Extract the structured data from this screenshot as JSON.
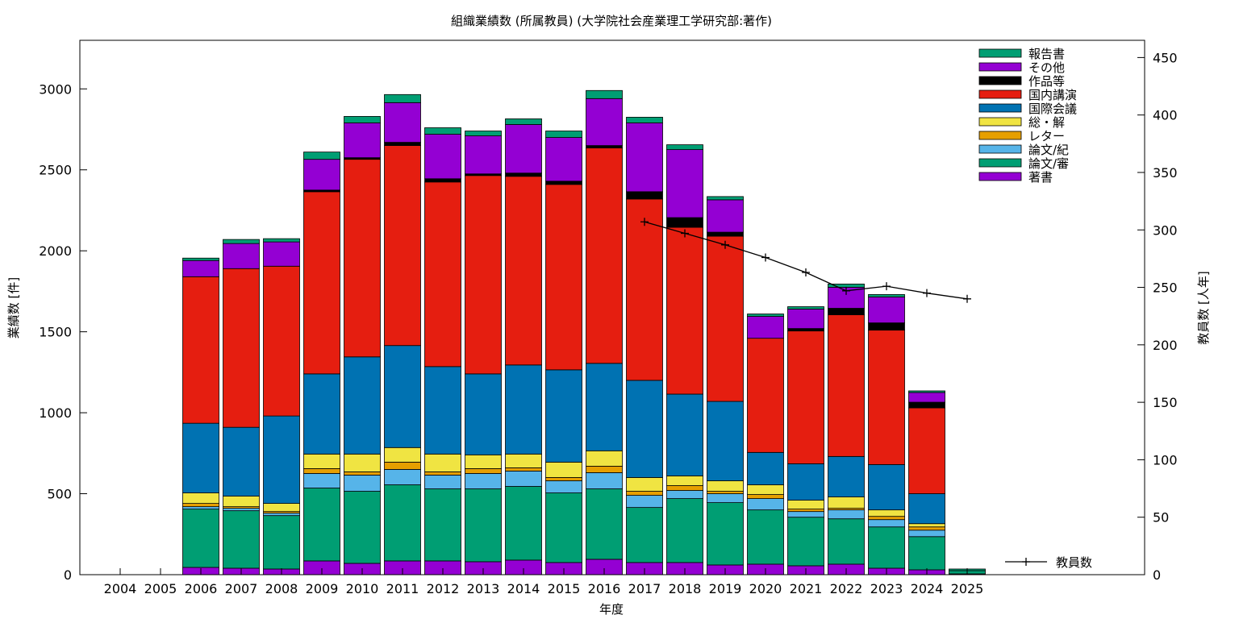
{
  "chart_data": {
    "type": "bar",
    "stacked": true,
    "title": "組織業績数 (所属教員) (大学院社会産業理工学研究部:著作)",
    "xlabel": "年度",
    "ylabel": "業績数 [件]",
    "y2label": "教員数 [人年]",
    "ylim": [
      0,
      3300
    ],
    "y2lim": [
      0,
      465
    ],
    "yticks": [
      0,
      500,
      1000,
      1500,
      2000,
      2500,
      3000
    ],
    "y2ticks": [
      0,
      50,
      100,
      150,
      200,
      250,
      300,
      350,
      400,
      450
    ],
    "grid": false,
    "legend_position": "top-right",
    "categories": [
      "2004",
      "2005",
      "2006",
      "2007",
      "2008",
      "2009",
      "2010",
      "2011",
      "2012",
      "2013",
      "2014",
      "2015",
      "2016",
      "2017",
      "2018",
      "2019",
      "2020",
      "2021",
      "2022",
      "2023",
      "2024",
      "2025"
    ],
    "series": [
      {
        "name": "著書",
        "color": "#9400d3",
        "values": [
          0,
          0,
          45,
          40,
          35,
          85,
          70,
          85,
          85,
          80,
          90,
          75,
          95,
          75,
          75,
          60,
          65,
          55,
          65,
          40,
          30,
          5
        ]
      },
      {
        "name": "論文/審",
        "color": "#009e73",
        "values": [
          0,
          0,
          360,
          355,
          330,
          450,
          445,
          470,
          445,
          450,
          455,
          430,
          435,
          340,
          395,
          385,
          335,
          300,
          280,
          255,
          205,
          20
        ]
      },
      {
        "name": "論文/紀",
        "color": "#56b4e9",
        "values": [
          0,
          0,
          15,
          15,
          15,
          90,
          100,
          95,
          85,
          95,
          95,
          75,
          100,
          75,
          50,
          55,
          70,
          35,
          55,
          45,
          40,
          0
        ]
      },
      {
        "name": "レター",
        "color": "#e69f00",
        "values": [
          0,
          0,
          20,
          10,
          10,
          30,
          20,
          45,
          20,
          30,
          20,
          20,
          40,
          25,
          30,
          15,
          25,
          15,
          10,
          20,
          20,
          0
        ]
      },
      {
        "name": "総・解",
        "color": "#f0e442",
        "values": [
          0,
          0,
          65,
          65,
          50,
          90,
          110,
          90,
          110,
          85,
          85,
          95,
          95,
          85,
          60,
          65,
          60,
          55,
          70,
          40,
          20,
          0
        ]
      },
      {
        "name": "国際会議",
        "color": "#0072b2",
        "values": [
          0,
          0,
          430,
          425,
          540,
          495,
          600,
          630,
          540,
          500,
          550,
          570,
          540,
          600,
          505,
          490,
          200,
          225,
          250,
          280,
          185,
          0
        ]
      },
      {
        "name": "国内講演",
        "color": "#e51e10",
        "values": [
          0,
          0,
          905,
          980,
          925,
          1125,
          1220,
          1235,
          1140,
          1225,
          1165,
          1145,
          1330,
          1120,
          1030,
          1020,
          705,
          820,
          875,
          830,
          530,
          0
        ]
      },
      {
        "name": "作品等",
        "color": "#000000",
        "values": [
          0,
          0,
          0,
          0,
          0,
          10,
          10,
          20,
          20,
          10,
          20,
          20,
          15,
          45,
          60,
          25,
          0,
          15,
          40,
          45,
          35,
          0
        ]
      },
      {
        "name": "その他",
        "color": "#9400d3",
        "values": [
          0,
          0,
          100,
          155,
          150,
          190,
          215,
          245,
          275,
          235,
          300,
          270,
          290,
          425,
          420,
          200,
          135,
          120,
          130,
          160,
          60,
          0
        ]
      },
      {
        "name": "報告書",
        "color": "#009e73",
        "values": [
          0,
          0,
          15,
          25,
          20,
          45,
          40,
          50,
          40,
          30,
          35,
          40,
          50,
          35,
          30,
          20,
          15,
          15,
          20,
          15,
          10,
          10
        ]
      }
    ],
    "line_series": {
      "name": "教員数",
      "axis": "y2",
      "color": "#000000",
      "x": [
        "2017",
        "2018",
        "2019",
        "2020",
        "2021",
        "2022",
        "2023",
        "2024",
        "2025"
      ],
      "values": [
        307,
        297,
        287,
        276,
        263,
        247,
        251,
        245,
        240
      ]
    }
  }
}
